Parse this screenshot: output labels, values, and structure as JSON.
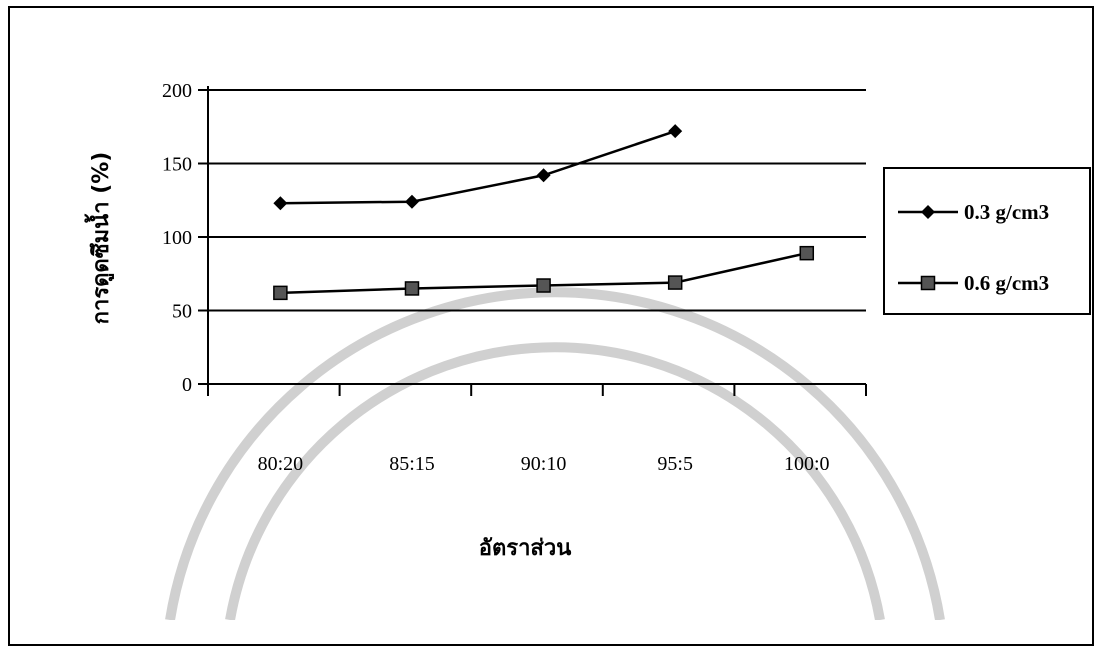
{
  "chart_data": {
    "type": "line",
    "title": "",
    "xlabel": "อัตราส่วน",
    "ylabel": "การดูดซึมน้ำ (%)",
    "categories": [
      "80:20",
      "85:15",
      "90:10",
      "95:5",
      "100:0"
    ],
    "ylim": [
      0,
      200
    ],
    "yticks": [
      0,
      50,
      100,
      150,
      200
    ],
    "grid": true,
    "legend_position": "right",
    "series": [
      {
        "name": "0.3 g/cm3",
        "marker": "diamond",
        "color": "#000000",
        "values": [
          123,
          124,
          142,
          172,
          null
        ]
      },
      {
        "name": "0.6 g/cm3",
        "marker": "square",
        "color": "#000000",
        "values": [
          62,
          65,
          67,
          69,
          89
        ]
      }
    ]
  }
}
